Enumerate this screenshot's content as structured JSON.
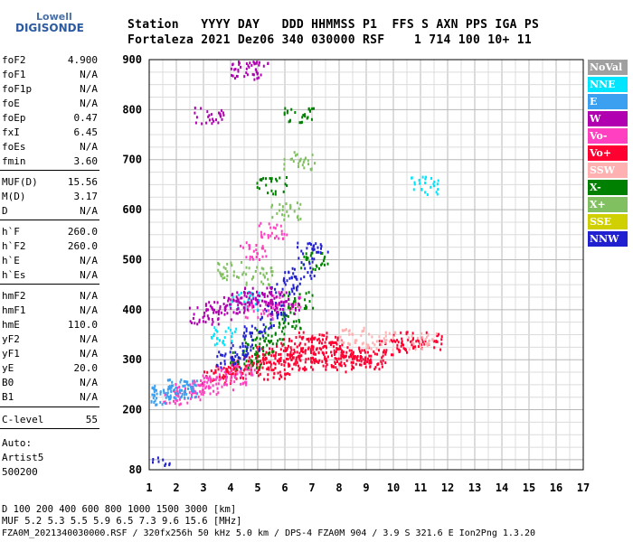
{
  "logo": {
    "line1": "Lowell",
    "line2": "DIGISONDE"
  },
  "header": {
    "line1": "Station   YYYY DAY   DDD HHMMSS P1  FFS S AXN PPS IGA PS",
    "line2": "Fortaleza 2021 Dez06 340 030000 RSF    1 714 100 10+ 11"
  },
  "params": [
    {
      "name": "foF2",
      "value": "4.900"
    },
    {
      "name": "foF1",
      "value": "N/A"
    },
    {
      "name": "foF1p",
      "value": "N/A"
    },
    {
      "name": "foE",
      "value": "N/A"
    },
    {
      "name": "foEp",
      "value": "0.47"
    },
    {
      "name": "fxI",
      "value": "6.45"
    },
    {
      "name": "foEs",
      "value": "N/A"
    },
    {
      "name": "fmin",
      "value": "3.60"
    },
    {
      "name": "MUF(D)",
      "value": "15.56"
    },
    {
      "name": "M(D)",
      "value": "3.17"
    },
    {
      "name": "D",
      "value": "N/A"
    },
    {
      "name": "h`F",
      "value": "260.0"
    },
    {
      "name": "h`F2",
      "value": "260.0"
    },
    {
      "name": "h`E",
      "value": "N/A"
    },
    {
      "name": "h`Es",
      "value": "N/A"
    },
    {
      "name": "hmF2",
      "value": "N/A"
    },
    {
      "name": "hmF1",
      "value": "N/A"
    },
    {
      "name": "hmE",
      "value": "110.0"
    },
    {
      "name": "yF2",
      "value": "N/A"
    },
    {
      "name": "yF1",
      "value": "N/A"
    },
    {
      "name": "yE",
      "value": "20.0"
    },
    {
      "name": "B0",
      "value": "N/A"
    },
    {
      "name": "B1",
      "value": "N/A"
    },
    {
      "name": "C-level",
      "value": "55"
    }
  ],
  "autoscale": {
    "line1": "Auto:",
    "line2": "Artist5",
    "line3": "500200"
  },
  "legend": [
    {
      "label": "NoVal",
      "color": "#a0a0a0"
    },
    {
      "label": "NNE",
      "color": "#00e5ff"
    },
    {
      "label": "E",
      "color": "#3ca0f0"
    },
    {
      "label": "W",
      "color": "#b000b0"
    },
    {
      "label": "Vo-",
      "color": "#ff40c0"
    },
    {
      "label": "Vo+",
      "color": "#ff0030"
    },
    {
      "label": "SSW",
      "color": "#ffb0b0"
    },
    {
      "label": "X-",
      "color": "#008000"
    },
    {
      "label": "X+",
      "color": "#80c060"
    },
    {
      "label": "SSE",
      "color": "#d0d000"
    },
    {
      "label": "NNW",
      "color": "#2020d0"
    }
  ],
  "footer": {
    "d_line": "D     100  200  400  600  800 1000 1500 3000 [km]",
    "muf_line": "MUF   5.2  5.3  5.5  5.9  6.5  7.3  9.6 15.6 [MHz]",
    "file_line": "FZA0M_2021340030000.RSF / 320fx256h 50 kHz 5.0 km / DPS-4 FZA0M 904 / 3.9 S 321.6 E   Ion2Png 1.3.20"
  },
  "chart_data": {
    "type": "scatter",
    "title": "",
    "xlabel": "",
    "ylabel": "",
    "x_ticks": [
      1,
      2,
      3,
      4,
      5,
      6,
      7,
      8,
      9,
      10,
      11,
      12,
      13,
      14,
      15,
      16,
      17
    ],
    "y_ticks": [
      200,
      300,
      400,
      500,
      600,
      700,
      800,
      900
    ],
    "y_bottom_label": "80",
    "xlim": [
      1,
      17
    ],
    "ylim": [
      80,
      900
    ],
    "grid": true,
    "series": [
      {
        "name": "Vo+",
        "points": [
          [
            3.5,
            270
          ],
          [
            4.0,
            280
          ],
          [
            4.5,
            290
          ],
          [
            5.0,
            300
          ],
          [
            5.5,
            310
          ],
          [
            6.0,
            320
          ],
          [
            6.5,
            330
          ],
          [
            7.0,
            340
          ],
          [
            7.5,
            330
          ],
          [
            8.0,
            320
          ],
          [
            8.5,
            310
          ],
          [
            9.0,
            300
          ],
          [
            6.0,
            300
          ],
          [
            7.0,
            310
          ],
          [
            5.5,
            280
          ],
          [
            6.5,
            290
          ],
          [
            7.5,
            300
          ],
          [
            8.0,
            295
          ],
          [
            9.2,
            305
          ],
          [
            10.0,
            330
          ],
          [
            10.5,
            340
          ],
          [
            11.2,
            340
          ]
        ]
      },
      {
        "name": "Vo-",
        "points": [
          [
            2.0,
            230
          ],
          [
            2.5,
            240
          ],
          [
            3.0,
            250
          ],
          [
            3.5,
            260
          ],
          [
            4.0,
            270
          ],
          [
            4.5,
            280
          ],
          [
            5.0,
            400
          ],
          [
            6.0,
            420
          ],
          [
            4.8,
            520
          ],
          [
            5.5,
            560
          ]
        ]
      },
      {
        "name": "X-",
        "points": [
          [
            4.5,
            300
          ],
          [
            5.0,
            330
          ],
          [
            5.5,
            350
          ],
          [
            6.0,
            380
          ],
          [
            6.5,
            420
          ],
          [
            7.0,
            500
          ],
          [
            5.5,
            650
          ],
          [
            6.5,
            790
          ]
        ]
      },
      {
        "name": "NNW",
        "points": [
          [
            1.2,
            90
          ],
          [
            4.0,
            300
          ],
          [
            4.5,
            320
          ],
          [
            5.0,
            360
          ],
          [
            5.5,
            400
          ],
          [
            6.0,
            450
          ],
          [
            6.5,
            480
          ],
          [
            7.0,
            520
          ]
        ]
      },
      {
        "name": "E",
        "points": [
          [
            1.3,
            230
          ],
          [
            1.6,
            235
          ],
          [
            1.9,
            240
          ],
          [
            2.2,
            245
          ]
        ]
      },
      {
        "name": "NNE",
        "points": [
          [
            11.1,
            650
          ],
          [
            4.5,
            420
          ],
          [
            3.8,
            350
          ]
        ]
      },
      {
        "name": "W",
        "points": [
          [
            3.0,
            390
          ],
          [
            3.5,
            400
          ],
          [
            4.0,
            410
          ],
          [
            4.5,
            420
          ],
          [
            5.0,
            430
          ],
          [
            5.5,
            420
          ],
          [
            6.0,
            410
          ],
          [
            4.5,
            880
          ],
          [
            4.8,
            890
          ],
          [
            3.2,
            790
          ]
        ]
      },
      {
        "name": "X+",
        "points": [
          [
            6.0,
            600
          ],
          [
            6.5,
            700
          ],
          [
            4.0,
            480
          ],
          [
            5.0,
            470
          ]
        ]
      },
      {
        "name": "SSW",
        "points": [
          [
            8.5,
            350
          ],
          [
            9.5,
            340
          ],
          [
            11.1,
            340
          ]
        ]
      }
    ]
  }
}
